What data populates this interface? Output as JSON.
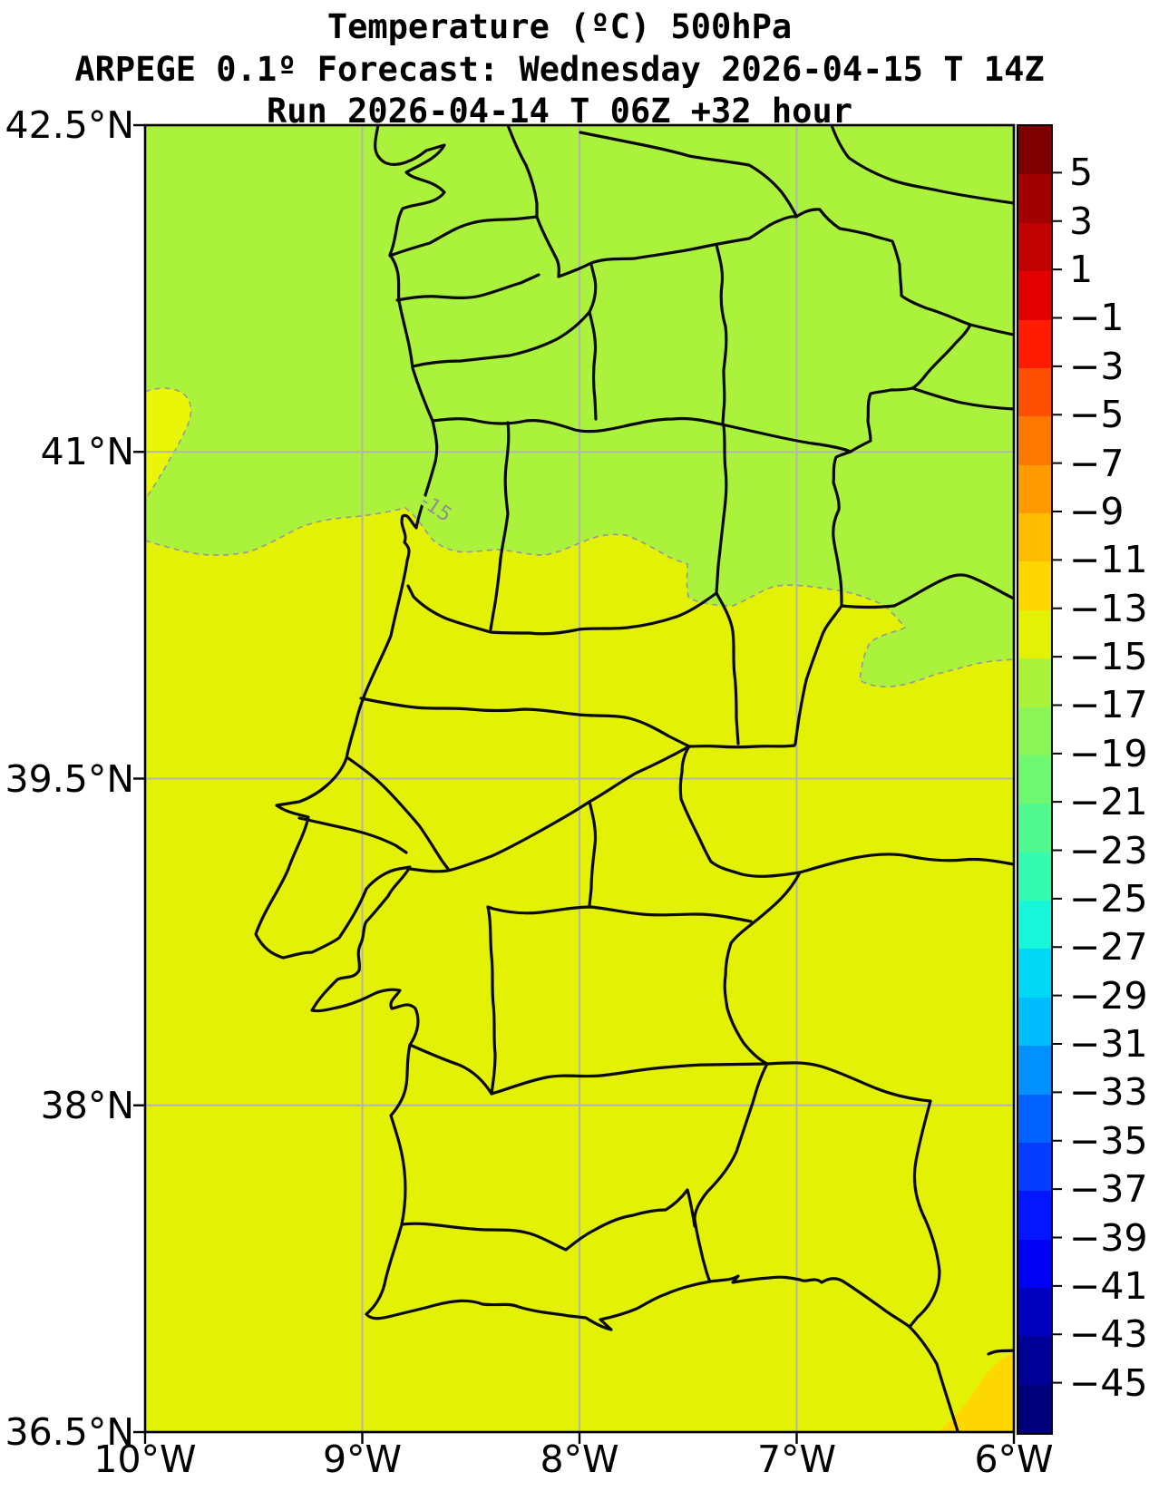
{
  "titles": {
    "line1": "Temperature (ºC) 500hPa",
    "line2": "ARPEGE 0.1º Forecast: Wednesday 2026-04-15 T 14Z",
    "line3": "Run 2026-04-14 T 06Z +32 hour"
  },
  "axes": {
    "x_labels": [
      "10°W",
      "9°W",
      "8°W",
      "7°W",
      "6°W"
    ],
    "y_labels": [
      "42.5°N",
      "41°N",
      "39.5°N",
      "38°N",
      "36.5°N"
    ]
  },
  "map": {
    "contour_label": "-15",
    "region_colors": {
      "band_minus17_to_minus15_north": "#abf23c",
      "band_minus15_to_minus13_south": "#e3f204",
      "band_minus13_to_minus11_se_corner": "#ffd700",
      "coast_and_borders": "#000000",
      "contour_line": "#999999",
      "gridline": "#b4b4b4"
    }
  },
  "colorbar": {
    "tick_labels": [
      "5",
      "3",
      "1",
      "−1",
      "−3",
      "−5",
      "−7",
      "−9",
      "−11",
      "−13",
      "−15",
      "−17",
      "−19",
      "−21",
      "−23",
      "−25",
      "−27",
      "−29",
      "−31",
      "−33",
      "−35",
      "−37",
      "−39",
      "−41",
      "−43",
      "−45"
    ],
    "segment_colors": [
      "#7f0000",
      "#a00000",
      "#c10000",
      "#e30000",
      "#ff1c00",
      "#ff4f00",
      "#ff7800",
      "#ff9b00",
      "#ffbd00",
      "#ffd700",
      "#e3f204",
      "#abf23c",
      "#8bf457",
      "#6ef872",
      "#51fa90",
      "#35fbb2",
      "#17f6d9",
      "#00d9f6",
      "#00bdff",
      "#0090ff",
      "#0062ff",
      "#063cff",
      "#0415ff",
      "#0000f2",
      "#0000c0",
      "#000096",
      "#00007a"
    ]
  },
  "chart_data": {
    "type": "filled-contour-map",
    "variable": "Temperature (ºC) 500hPa",
    "model": "ARPEGE 0.1º",
    "valid_time": "Wednesday 2026-04-15 T 14Z",
    "run_time": "2026-04-14 T 06Z",
    "lead": "+32 hour",
    "lon_ticks": [
      "10°W",
      "9°W",
      "8°W",
      "7°W",
      "6°W"
    ],
    "lat_ticks": [
      "42.5°N",
      "41°N",
      "39.5°N",
      "38°N",
      "36.5°N"
    ],
    "colorbar_levels_c": [
      5,
      3,
      1,
      -1,
      -3,
      -5,
      -7,
      -9,
      -11,
      -13,
      -15,
      -17,
      -19,
      -21,
      -23,
      -25,
      -27,
      -29,
      -31,
      -33,
      -35,
      -37,
      -39,
      -41,
      -43,
      -45
    ],
    "labeled_contour_c": -15,
    "field_regions": [
      {
        "area": "north of the labeled -15 contour (≈ above 40.3–40.8°N)",
        "band_c": "-17 to -15"
      },
      {
        "area": "center and south of the domain",
        "band_c": "-15 to -13"
      },
      {
        "area": "far southeast corner near 6°W / 36.6°N",
        "band_c": "-13 to -11"
      },
      {
        "area": "small dashed pocket at the west edge ≈ 41.0–41.3°N",
        "band_c": "-15 to -13"
      },
      {
        "area": "dashed lobe near east edge ≈ 39.9–40.3°N",
        "band_c": "-17 to -15"
      }
    ]
  }
}
